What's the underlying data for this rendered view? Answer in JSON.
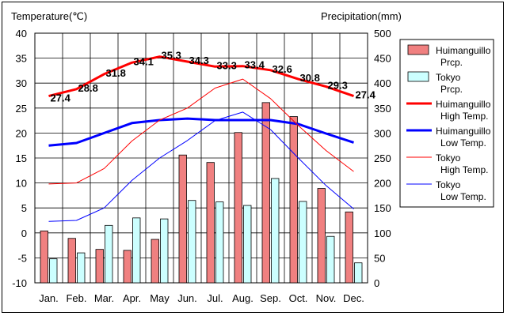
{
  "chart_data": {
    "type": "bar+line",
    "left_axis_label": "Temperature(℃)",
    "right_axis_label": "Precipitation(mm)",
    "left_ylim": [
      -10,
      40
    ],
    "right_ylim": [
      0,
      500
    ],
    "left_ticks": [
      "40",
      "35",
      "30",
      "25",
      "20",
      "15",
      "10",
      "5",
      "0",
      "-5",
      "-10"
    ],
    "right_ticks": [
      "500",
      "450",
      "400",
      "350",
      "300",
      "250",
      "200",
      "150",
      "100",
      "50",
      "0"
    ],
    "categories": [
      "Jan.",
      "Feb.",
      "Mar.",
      "Apr.",
      "May",
      "Jun.",
      "Jul.",
      "Aug.",
      "Sep.",
      "Oct.",
      "Nov.",
      "Dec."
    ],
    "grid": true,
    "legend_position": "right",
    "bar_series": [
      {
        "name": "Huimanguillo Prcp.",
        "color": "#f08080",
        "values": [
          104,
          89,
          67,
          65,
          87,
          256,
          241,
          301,
          361,
          333,
          189,
          142
        ]
      },
      {
        "name": "Tokyo Prcp.",
        "color": "#ccffff",
        "values": [
          48,
          60,
          115,
          130,
          128,
          165,
          162,
          155,
          209,
          163,
          93,
          40
        ]
      }
    ],
    "line_series": [
      {
        "name": "Huimanguillo High Temp.",
        "color": "#ff0000",
        "width": 3,
        "values": [
          27.4,
          28.8,
          31.8,
          34.1,
          35.3,
          34.3,
          33.3,
          33.4,
          32.6,
          30.8,
          29.3,
          27.4
        ]
      },
      {
        "name": "Huimanguillo Low Temp.",
        "color": "#0000ff",
        "width": 3,
        "values": [
          17.5,
          18.0,
          20.0,
          22.0,
          22.6,
          22.9,
          22.6,
          22.6,
          22.6,
          21.8,
          19.9,
          18.1
        ]
      },
      {
        "name": "Tokyo High Temp.",
        "color": "#ff0000",
        "width": 1,
        "values": [
          9.8,
          10.0,
          12.9,
          18.4,
          22.6,
          25.0,
          29.0,
          30.8,
          26.9,
          21.5,
          16.5,
          12.3
        ]
      },
      {
        "name": "Tokyo Low Temp.",
        "color": "#0000ff",
        "width": 1,
        "values": [
          2.3,
          2.5,
          5.0,
          10.5,
          15.0,
          18.5,
          22.5,
          24.2,
          20.7,
          15.0,
          9.5,
          4.8
        ]
      }
    ],
    "high_labels": [
      "27.4",
      "28.8",
      "31.8",
      "34.1",
      "35.3",
      "34.3",
      "33.3",
      "33.4",
      "32.6",
      "30.8",
      "29.3",
      "27.4"
    ]
  },
  "legend": [
    {
      "line1": "Huimanguillo",
      "line2": "Prcp.",
      "kind": "bar",
      "color": "#f08080"
    },
    {
      "line1": "Tokyo",
      "line2": "Prcp.",
      "kind": "bar",
      "color": "#ccffff"
    },
    {
      "line1": "Huimanguillo",
      "line2": "High Temp.",
      "kind": "line",
      "color": "#ff0000",
      "width": 3
    },
    {
      "line1": "Huimanguillo",
      "line2": "Low Temp.",
      "kind": "line",
      "color": "#0000ff",
      "width": 3
    },
    {
      "line1": "Tokyo",
      "line2": "High Temp.",
      "kind": "line",
      "color": "#ff0000",
      "width": 1
    },
    {
      "line1": "Tokyo",
      "line2": "Low Temp.",
      "kind": "line",
      "color": "#0000ff",
      "width": 1
    }
  ]
}
